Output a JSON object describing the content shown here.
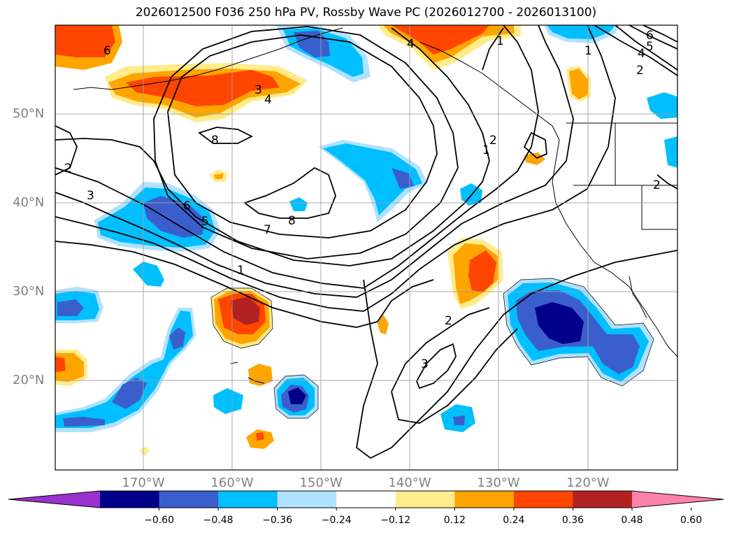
{
  "title": "2026012500 F036 250 hPa PV, Rossby Wave PC (2026012700 - 2026013100)",
  "latitude_labels": [
    "50°N",
    "40°N",
    "30°N",
    "20°N"
  ],
  "longitude_labels": [
    "170°W",
    "160°W",
    "150°W",
    "140°W",
    "130°W",
    "120°W"
  ],
  "contour_labels": [
    "6",
    "3",
    "4",
    "8",
    "2",
    "3",
    "6",
    "5",
    "7",
    "8",
    "1",
    "2",
    "3",
    "1",
    "2",
    "1",
    "2",
    "4",
    "5",
    "6",
    "4",
    "1",
    "2"
  ],
  "colorbar": {
    "tick_labels": [
      "−0.60",
      "−0.48",
      "−0.36",
      "−0.24",
      "−0.12",
      "0.12",
      "0.24",
      "0.36",
      "0.48",
      "0.60"
    ],
    "colors": [
      "#9932cc",
      "#00008b",
      "#3a5fcd",
      "#00bfff",
      "#b0e2ff",
      "#ffffff",
      "#ffec8b",
      "#ffa500",
      "#ff4500",
      "#b22222",
      "#ff82ab"
    ]
  }
}
